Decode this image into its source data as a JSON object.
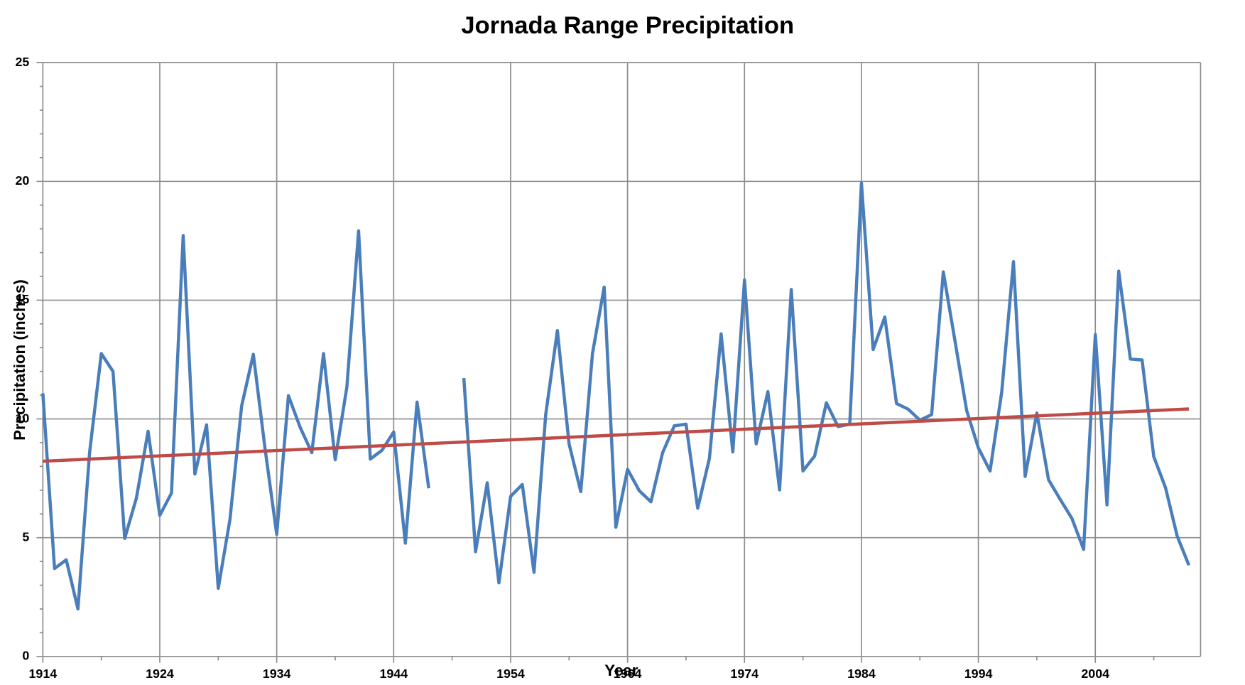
{
  "chart_data": {
    "type": "line",
    "title": "Jornada Range Precipitation",
    "x_label": "Year",
    "y_label": "Precipitation (inches)",
    "x": [
      1914,
      1915,
      1916,
      1917,
      1918,
      1919,
      1920,
      1921,
      1922,
      1923,
      1924,
      1925,
      1926,
      1927,
      1928,
      1929,
      1930,
      1931,
      1932,
      1933,
      1934,
      1935,
      1936,
      1937,
      1938,
      1939,
      1940,
      1941,
      1942,
      1943,
      1944,
      1945,
      1946,
      1947,
      1948,
      1949,
      1950,
      1951,
      1952,
      1953,
      1954,
      1955,
      1956,
      1957,
      1958,
      1959,
      1960,
      1961,
      1962,
      1963,
      1964,
      1965,
      1966,
      1967,
      1968,
      1969,
      1970,
      1971,
      1972,
      1973,
      1974,
      1975,
      1976,
      1977,
      1978,
      1979,
      1980,
      1981,
      1982,
      1983,
      1984,
      1985,
      1986,
      1987,
      1988,
      1989,
      1990,
      1991,
      1992,
      1993,
      1994,
      1995,
      1996,
      1997,
      1998,
      1999,
      2000,
      2001,
      2002,
      2003,
      2004,
      2005,
      2006,
      2007,
      2008,
      2009,
      2010,
      2011,
      2012
    ],
    "series": [
      {
        "color": "#4a7ebb",
        "values": [
          11.08,
          3.7,
          4.07,
          2.0,
          8.6,
          12.75,
          12.0,
          4.97,
          6.67,
          9.48,
          5.94,
          6.88,
          17.72,
          7.68,
          9.75,
          2.87,
          5.77,
          10.55,
          12.72,
          8.75,
          5.14,
          10.98,
          9.65,
          8.58,
          12.75,
          8.28,
          11.35,
          17.92,
          8.31,
          8.68,
          9.45,
          4.77,
          10.71,
          7.08,
          null,
          null,
          11.72,
          4.41,
          7.31,
          3.1,
          6.74,
          7.24,
          3.54,
          10.18,
          13.72,
          8.95,
          6.94,
          12.75,
          15.55,
          5.44,
          7.88,
          6.98,
          6.51,
          8.58,
          9.71,
          9.78,
          6.24,
          8.34,
          13.58,
          8.61,
          15.85,
          8.95,
          11.15,
          7.01,
          15.45,
          7.81,
          8.44,
          10.68,
          9.68,
          9.78,
          19.93,
          12.92,
          14.29,
          10.65,
          10.41,
          9.95,
          10.18,
          16.19,
          13.28,
          10.35,
          8.78,
          7.81,
          11.15,
          16.62,
          7.58,
          10.25,
          7.44,
          6.61,
          5.81,
          4.51,
          13.55,
          6.38,
          16.22,
          12.52,
          12.48,
          8.41,
          7.11,
          5.07,
          3.84
        ]
      },
      {
        "color": "#be4b48",
        "x": [
          1914,
          2012
        ],
        "values": [
          8.22,
          10.42
        ]
      }
    ],
    "xlim": [
      1914,
      2013
    ],
    "xticks": [
      1914,
      1924,
      1934,
      1944,
      1954,
      1964,
      1974,
      1984,
      1994,
      2004
    ],
    "ylim": [
      0,
      25
    ],
    "yticks": [
      0,
      5,
      10,
      15,
      20,
      25
    ],
    "grid": true
  }
}
